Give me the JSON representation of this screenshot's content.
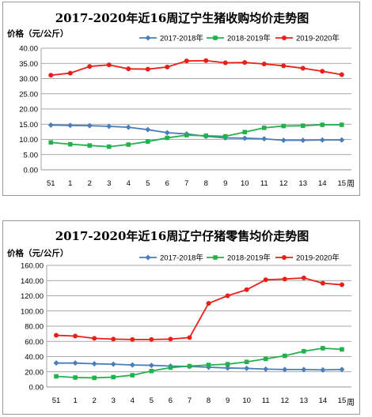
{
  "chart_data": [
    {
      "type": "line",
      "title": "2017-2020年近16周辽宁生猪收购均价走势图",
      "ylabel": "价格（元/公斤）",
      "xunit": "周",
      "categories": [
        "51",
        "1",
        "2",
        "3",
        "4",
        "5",
        "6",
        "7",
        "8",
        "9",
        "10",
        "11",
        "12",
        "13",
        "14",
        "15"
      ],
      "ylim": [
        0,
        40
      ],
      "yticks": [
        "0.00",
        "5.00",
        "10.00",
        "15.00",
        "20.00",
        "25.00",
        "30.00",
        "35.00",
        "40.00"
      ],
      "ytick_values": [
        0,
        5,
        10,
        15,
        20,
        25,
        30,
        35,
        40
      ],
      "grid": true,
      "legend_position": "top",
      "series": [
        {
          "name": "2017-2018年",
          "color": "#4a7ebb",
          "marker": "diamond",
          "values": [
            14.7,
            14.6,
            14.5,
            14.3,
            14.0,
            13.2,
            12.2,
            11.8,
            11.0,
            10.5,
            10.4,
            10.2,
            9.7,
            9.7,
            9.8,
            9.8
          ]
        },
        {
          "name": "2018-2019年",
          "color": "#22b14c",
          "marker": "square",
          "values": [
            9.0,
            8.4,
            8.0,
            7.6,
            8.3,
            9.3,
            10.5,
            11.4,
            11.2,
            11.0,
            12.4,
            13.8,
            14.4,
            14.5,
            14.8,
            14.8
          ]
        },
        {
          "name": "2019-2020年",
          "color": "#e8201a",
          "marker": "circle",
          "values": [
            31.1,
            31.8,
            34.0,
            34.5,
            33.2,
            33.1,
            33.8,
            35.8,
            35.9,
            35.2,
            35.3,
            34.8,
            34.2,
            33.4,
            32.4,
            31.3
          ]
        }
      ]
    },
    {
      "type": "line",
      "title": "2017-2020年近16周辽宁仔猪零售均价走势图",
      "ylabel": "价格（元/公斤）",
      "xunit": "周",
      "categories": [
        "51",
        "1",
        "2",
        "3",
        "4",
        "5",
        "6",
        "7",
        "8",
        "9",
        "10",
        "11",
        "12",
        "13",
        "14",
        "15"
      ],
      "ylim": [
        0,
        160
      ],
      "yticks": [
        "0.00",
        "20.00",
        "40.00",
        "60.00",
        "80.00",
        "100.00",
        "120.00",
        "140.00",
        "160.00"
      ],
      "ytick_values": [
        0,
        20,
        40,
        60,
        80,
        100,
        120,
        140,
        160
      ],
      "grid": true,
      "legend_position": "top",
      "series": [
        {
          "name": "2017-2018年",
          "color": "#4a7ebb",
          "marker": "diamond",
          "values": [
            31.5,
            31.5,
            30.5,
            30.0,
            29.0,
            28.5,
            27.5,
            27.0,
            26.0,
            25.0,
            24.5,
            23.5,
            23.0,
            23.0,
            22.5,
            23.0
          ]
        },
        {
          "name": "2018-2019年",
          "color": "#22b14c",
          "marker": "square",
          "values": [
            14.0,
            12.5,
            12.0,
            13.0,
            15.5,
            21.0,
            25.5,
            27.5,
            29.0,
            30.0,
            33.0,
            37.0,
            41.0,
            47.0,
            51.0,
            49.5
          ]
        },
        {
          "name": "2019-2020年",
          "color": "#e8201a",
          "marker": "circle",
          "values": [
            68.0,
            67.0,
            64.0,
            63.0,
            62.5,
            62.5,
            63.0,
            65.0,
            110.0,
            120.0,
            128.0,
            141.0,
            142.0,
            143.5,
            136.5,
            134.5
          ]
        }
      ]
    }
  ]
}
